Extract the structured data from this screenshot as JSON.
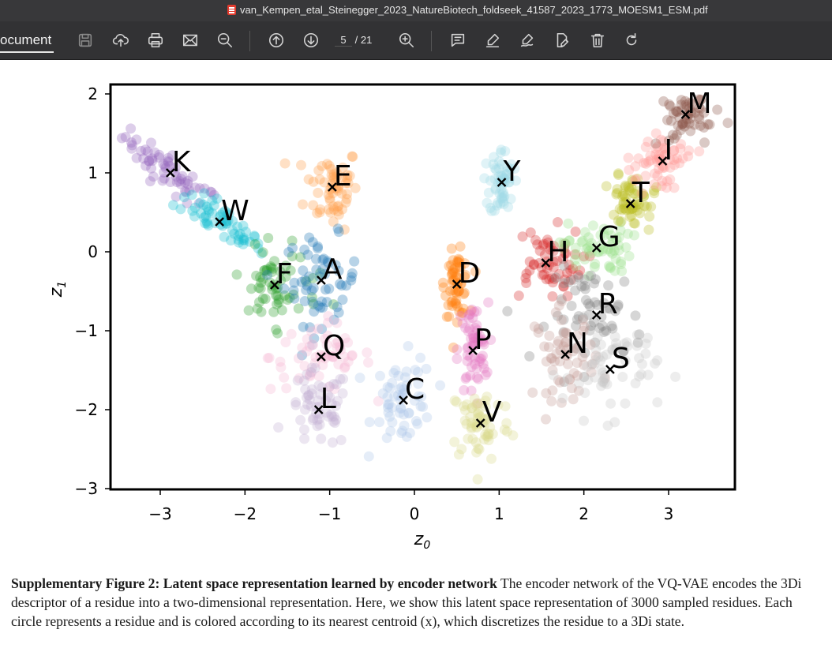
{
  "window": {
    "title": "van_Kempen_etal_Steinegger_2023_NatureBiotech_foldseek_41587_2023_1773_MOESM1_ESM.pdf"
  },
  "toolbar": {
    "doc_label": "ocument",
    "page_current": "5",
    "page_total": "/ 21",
    "icons": [
      "save-icon",
      "upload-icon",
      "print-icon",
      "mail-icon",
      "zoom-out-icon",
      "page-up-icon",
      "page-down-icon",
      "zoom-in-icon",
      "comment-icon",
      "highlight-icon",
      "sign-icon",
      "edit-icon",
      "trash-icon",
      "redo-icon"
    ]
  },
  "chart_data": {
    "type": "scatter",
    "xlabel": "z0",
    "ylabel": "z1",
    "xlim": [
      -3.6,
      3.8
    ],
    "ylim": [
      -3.0,
      2.1
    ],
    "xticks": [
      -3,
      -2,
      -1,
      0,
      1,
      2,
      3
    ],
    "yticks": [
      -3,
      -2,
      -1,
      0,
      1,
      2
    ],
    "xtick_labels": [
      "−3",
      "−2",
      "−1",
      "0",
      "1",
      "2",
      "3"
    ],
    "ytick_labels": [
      "−3",
      "−2",
      "−1",
      "0",
      "1",
      "2"
    ],
    "sample_count": 3000,
    "centroids": [
      {
        "label": "K",
        "x": -2.88,
        "y": 1.0,
        "color": "#9467bd"
      },
      {
        "label": "W",
        "x": -2.3,
        "y": 0.38,
        "color": "#17becf"
      },
      {
        "label": "E",
        "x": -0.97,
        "y": 0.82,
        "color": "#ff9f4a"
      },
      {
        "label": "F",
        "x": -1.65,
        "y": -0.42,
        "color": "#2ca02c"
      },
      {
        "label": "A",
        "x": -1.1,
        "y": -0.36,
        "color": "#1f77b4"
      },
      {
        "label": "Q",
        "x": -1.1,
        "y": -1.33,
        "color": "#f7b6d2"
      },
      {
        "label": "L",
        "x": -1.13,
        "y": -2.0,
        "color": "#c5b0d5"
      },
      {
        "label": "C",
        "x": -0.13,
        "y": -1.88,
        "color": "#aec7e8"
      },
      {
        "label": "D",
        "x": 0.5,
        "y": -0.41,
        "color": "#ff7f0e"
      },
      {
        "label": "P",
        "x": 0.69,
        "y": -1.25,
        "color": "#e377c2"
      },
      {
        "label": "V",
        "x": 0.78,
        "y": -2.17,
        "color": "#dbdb8d"
      },
      {
        "label": "Y",
        "x": 1.03,
        "y": 0.88,
        "color": "#9edae5"
      },
      {
        "label": "H",
        "x": 1.55,
        "y": -0.14,
        "color": "#d62728"
      },
      {
        "label": "G",
        "x": 2.15,
        "y": 0.05,
        "color": "#98df8a"
      },
      {
        "label": "T",
        "x": 2.55,
        "y": 0.61,
        "color": "#bcbd22"
      },
      {
        "label": "I",
        "x": 2.93,
        "y": 1.15,
        "color": "#ff9896"
      },
      {
        "label": "M",
        "x": 3.2,
        "y": 1.74,
        "color": "#8c564b"
      },
      {
        "label": "R",
        "x": 2.15,
        "y": -0.8,
        "color": "#7f7f7f"
      },
      {
        "label": "N",
        "x": 1.78,
        "y": -1.3,
        "color": "#c49c94"
      },
      {
        "label": "S",
        "x": 2.31,
        "y": -1.49,
        "color": "#c7c7c7"
      }
    ]
  },
  "caption": {
    "label": "Supplementary Figure 2:",
    "title": "Latent space representation learned by encoder network",
    "body": "The encoder network of the VQ-VAE encodes the 3Di descriptor of a residue into a two-dimensional representation. Here, we show this latent space representation of 3000 sampled residues. Each circle represents a residue and is colored according to its nearest centroid (x), which discretizes the residue to a 3Di state."
  }
}
